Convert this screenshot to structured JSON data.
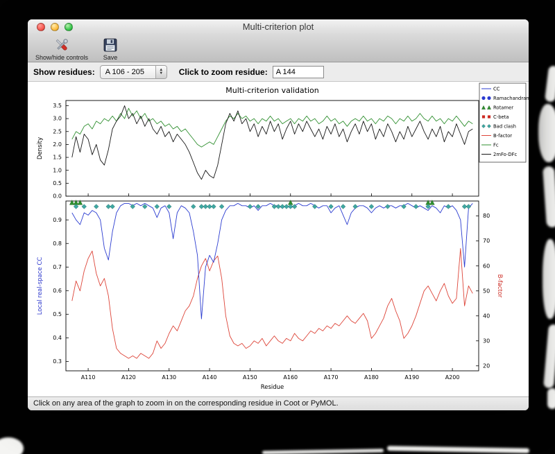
{
  "window": {
    "title": "Multi-criterion plot",
    "toolbar": {
      "show_hide_label": "Show/hide controls",
      "save_label": "Save"
    },
    "controls": {
      "show_residues_label": "Show residues:",
      "residue_range_value": "A 106 - 205",
      "zoom_label": "Click to zoom residue:",
      "zoom_value": "A 144"
    },
    "status_text": "Click on any area of the graph to zoom in on the corresponding residue in Coot or PyMOL."
  },
  "chart_data": {
    "type": "line",
    "title": "Multi-criterion validation",
    "xlabel": "Residue",
    "xlim": [
      104.5,
      206.5
    ],
    "x_residue_start": 106,
    "x_tick_values": [
      110,
      120,
      130,
      140,
      150,
      160,
      170,
      180,
      190,
      200
    ],
    "x_tick_labels": [
      "A110",
      "A120",
      "A130",
      "A140",
      "A150",
      "A160",
      "A170",
      "A180",
      "A190",
      "A200"
    ],
    "top_panel": {
      "ylabel": "Density",
      "ylim": [
        0,
        3.7
      ],
      "yticks": [
        0.0,
        0.5,
        1.0,
        1.5,
        2.0,
        2.5,
        3.0,
        3.5
      ],
      "series": [
        {
          "name": "Fc",
          "color": "#2f8f2f",
          "values": [
            2.2,
            2.5,
            2.4,
            2.7,
            2.8,
            2.6,
            2.9,
            2.8,
            3.0,
            2.9,
            3.1,
            2.9,
            3.2,
            3.0,
            3.4,
            3.1,
            3.3,
            3.0,
            3.2,
            2.9,
            3.0,
            2.8,
            2.9,
            2.7,
            2.8,
            2.6,
            2.7,
            2.5,
            2.6,
            2.4,
            2.2,
            2.0,
            1.9,
            2.0,
            2.1,
            2.0,
            2.3,
            2.6,
            2.9,
            3.1,
            3.0,
            3.2,
            3.0,
            3.1,
            2.9,
            3.0,
            2.8,
            3.0,
            2.9,
            3.1,
            2.9,
            3.0,
            2.8,
            2.9,
            3.0,
            2.8,
            3.0,
            2.9,
            3.1,
            2.9,
            3.0,
            2.8,
            2.9,
            3.1,
            2.9,
            3.0,
            2.8,
            2.9,
            2.7,
            2.9,
            3.0,
            2.9,
            3.1,
            2.9,
            3.0,
            2.8,
            3.0,
            2.9,
            3.1,
            3.0,
            2.8,
            3.0,
            2.9,
            3.1,
            2.9,
            3.0,
            3.2,
            3.0,
            2.9,
            3.1,
            2.9,
            3.0,
            2.8,
            3.0,
            2.9,
            3.1,
            2.9,
            2.7,
            2.9,
            2.8
          ]
        },
        {
          "name": "2mFo-DFc",
          "color": "#161616",
          "values": [
            1.5,
            2.3,
            1.7,
            2.4,
            2.2,
            1.6,
            2.0,
            1.4,
            1.2,
            1.8,
            2.6,
            2.9,
            3.1,
            3.5,
            3.0,
            3.2,
            2.8,
            3.1,
            2.7,
            3.0,
            2.6,
            2.4,
            2.7,
            2.3,
            2.5,
            2.1,
            2.4,
            2.2,
            2.0,
            1.7,
            1.3,
            0.9,
            0.65,
            1.0,
            0.8,
            0.7,
            1.2,
            2.0,
            2.8,
            3.2,
            2.9,
            3.3,
            2.8,
            3.0,
            2.5,
            2.8,
            2.3,
            2.7,
            2.4,
            2.9,
            2.5,
            2.8,
            2.2,
            2.6,
            2.9,
            2.4,
            2.8,
            2.5,
            2.9,
            2.6,
            2.3,
            2.6,
            2.2,
            2.7,
            2.4,
            2.8,
            2.3,
            2.6,
            2.1,
            2.5,
            2.8,
            2.4,
            2.9,
            2.5,
            2.8,
            2.2,
            2.6,
            2.3,
            2.8,
            2.5,
            2.1,
            2.5,
            2.2,
            2.7,
            2.3,
            2.6,
            2.9,
            2.5,
            2.2,
            2.6,
            2.3,
            2.7,
            2.1,
            2.5,
            2.3,
            2.8,
            2.4,
            2.0,
            2.5,
            2.6
          ]
        }
      ]
    },
    "bottom_panel": {
      "left_ylabel": "Local real-space CC",
      "left_label_color": "#2a35cc",
      "left_ylim": [
        0.26,
        0.98
      ],
      "left_yticks": [
        0.3,
        0.4,
        0.5,
        0.6,
        0.7,
        0.8,
        0.9
      ],
      "right_ylabel": "B-factor",
      "right_label_color": "#cc2a22",
      "right_ylim": [
        18,
        86
      ],
      "right_yticks": [
        20,
        30,
        40,
        50,
        60,
        70,
        80
      ],
      "series": [
        {
          "name": "B-factor",
          "axis": "right",
          "color": "#dd4438",
          "values": [
            46,
            54,
            50,
            58,
            63,
            66,
            57,
            52,
            55,
            48,
            35,
            27,
            25,
            24,
            23,
            24,
            23,
            25,
            24,
            23,
            25,
            30,
            27,
            29,
            33,
            36,
            34,
            38,
            42,
            44,
            48,
            55,
            60,
            63,
            58,
            62,
            64,
            55,
            40,
            32,
            29,
            28,
            29,
            27,
            28,
            30,
            29,
            31,
            28,
            30,
            32,
            30,
            29,
            31,
            30,
            33,
            31,
            30,
            32,
            34,
            33,
            35,
            34,
            36,
            35,
            37,
            36,
            38,
            40,
            38,
            37,
            39,
            41,
            38,
            31,
            33,
            36,
            39,
            44,
            47,
            42,
            38,
            31,
            33,
            36,
            40,
            45,
            50,
            52,
            49,
            46,
            50,
            53,
            48,
            45,
            47,
            67,
            44,
            52,
            49
          ]
        },
        {
          "name": "CC",
          "axis": "left",
          "color": "#2a3bd0",
          "values": [
            0.93,
            0.9,
            0.88,
            0.93,
            0.92,
            0.94,
            0.93,
            0.9,
            0.78,
            0.73,
            0.85,
            0.93,
            0.96,
            0.97,
            0.97,
            0.96,
            0.97,
            0.96,
            0.97,
            0.96,
            0.95,
            0.91,
            0.95,
            0.96,
            0.93,
            0.82,
            0.93,
            0.96,
            0.95,
            0.93,
            0.85,
            0.75,
            0.48,
            0.7,
            0.75,
            0.72,
            0.8,
            0.9,
            0.94,
            0.96,
            0.96,
            0.97,
            0.96,
            0.96,
            0.95,
            0.96,
            0.94,
            0.96,
            0.96,
            0.97,
            0.96,
            0.96,
            0.95,
            0.96,
            0.95,
            0.96,
            0.97,
            0.96,
            0.96,
            0.97,
            0.96,
            0.95,
            0.96,
            0.96,
            0.93,
            0.95,
            0.96,
            0.92,
            0.88,
            0.93,
            0.95,
            0.96,
            0.96,
            0.95,
            0.93,
            0.95,
            0.96,
            0.95,
            0.96,
            0.96,
            0.95,
            0.96,
            0.96,
            0.97,
            0.96,
            0.95,
            0.96,
            0.95,
            0.94,
            0.96,
            0.95,
            0.93,
            0.96,
            0.95,
            0.96,
            0.94,
            0.9,
            0.7,
            0.95,
            0.97
          ]
        }
      ],
      "outlier_markers": [
        {
          "name": "Ramachandran",
          "shape": "circle",
          "color": "#2a3bd0",
          "residues": []
        },
        {
          "name": "Rotamer",
          "shape": "triangle",
          "color": "#2f8f2f",
          "residues": [
            106,
            107,
            108,
            160,
            194,
            195
          ]
        },
        {
          "name": "C-beta",
          "shape": "square",
          "color": "#cc2a22",
          "residues": []
        },
        {
          "name": "Bad clash",
          "shape": "diamond",
          "color": "#3fa8a2",
          "residues": [
            107,
            109,
            112,
            115,
            116,
            121,
            124,
            127,
            130,
            136,
            138,
            139,
            140,
            141,
            143,
            150,
            152,
            156,
            157,
            158,
            159,
            160,
            161,
            166,
            170,
            173,
            176,
            180,
            184,
            188,
            191,
            194,
            199,
            203,
            204
          ]
        }
      ]
    },
    "legend": {
      "entries": [
        {
          "label": "CC",
          "type": "line",
          "color": "#2a3bd0"
        },
        {
          "label": "Ramachandran",
          "type": "circle",
          "color": "#2a3bd0"
        },
        {
          "label": "Rotamer",
          "type": "triangle",
          "color": "#2f8f2f"
        },
        {
          "label": "C-beta",
          "type": "square",
          "color": "#cc2a22"
        },
        {
          "label": "Bad clash",
          "type": "diamond",
          "color": "#3fa8a2"
        },
        {
          "label": "B-factor",
          "type": "line",
          "color": "#dd4438"
        },
        {
          "label": "Fc",
          "type": "line",
          "color": "#2f8f2f"
        },
        {
          "label": "2mFo-DFc",
          "type": "line",
          "color": "#161616"
        }
      ]
    }
  }
}
